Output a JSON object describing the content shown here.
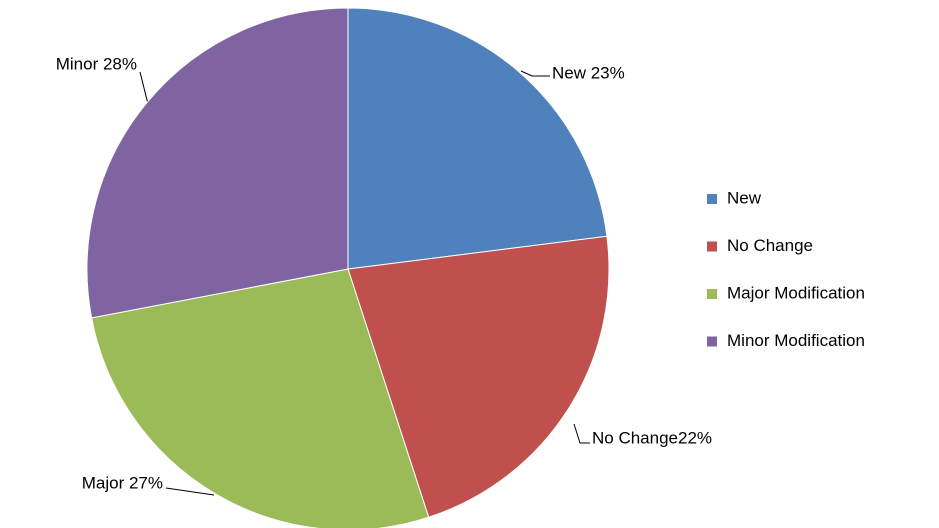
{
  "chart_data": {
    "type": "pie",
    "categories": [
      "New",
      "No Change",
      "Major Modification",
      "Minor Modification"
    ],
    "values": [
      23,
      22,
      27,
      28
    ],
    "value_labels": [
      "New 23%",
      "No Change22%",
      "Major 27%",
      "Minor 28%"
    ],
    "colors": [
      "#4f81bd",
      "#c0504d",
      "#9bbb59",
      "#8064a2"
    ],
    "legend": "right"
  }
}
